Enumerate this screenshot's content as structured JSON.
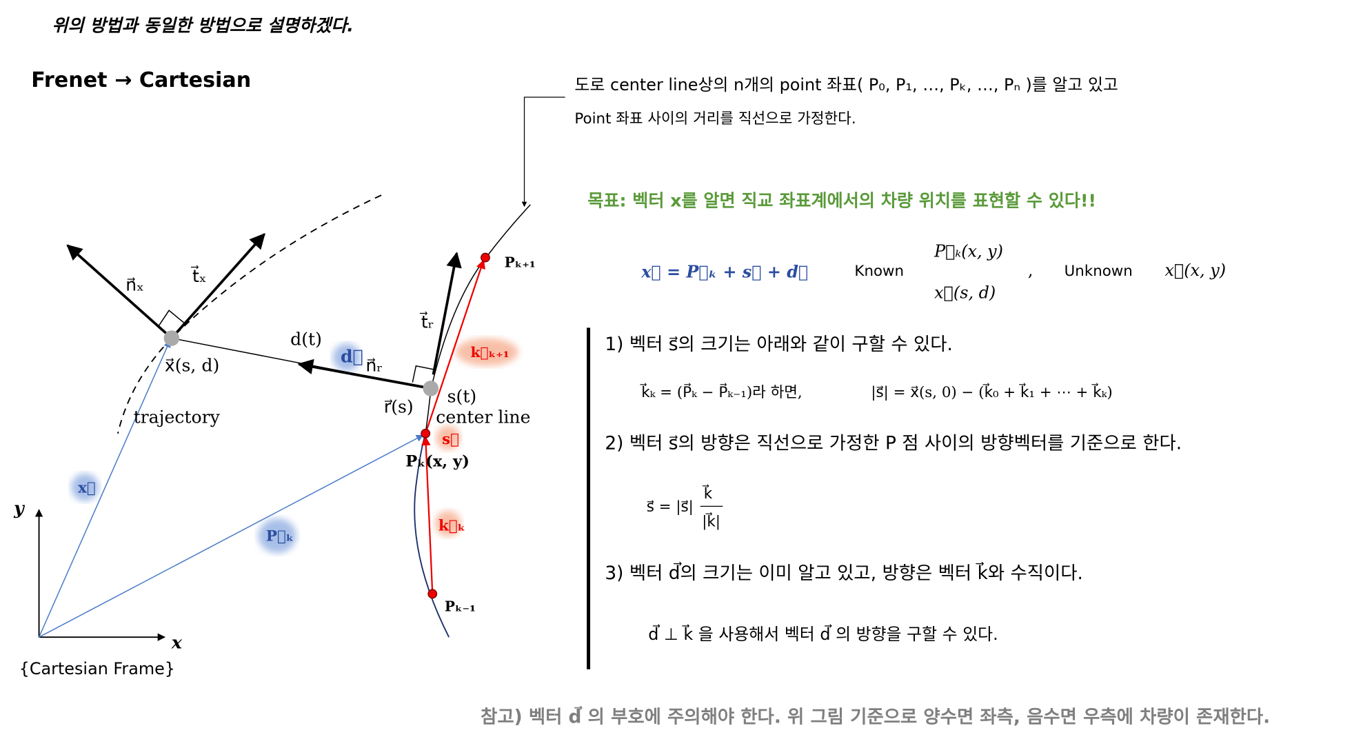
{
  "header": {
    "note": "위의 방법과 동일한 방법으로 설명하겠다.",
    "title": "Frenet → Cartesian"
  },
  "diagram": {
    "n_x": "n⃗ₓ",
    "t_x": "t⃗ₓ",
    "x_sd": "x⃗(s, d)",
    "trajectory": "trajectory",
    "d_t": "d(t)",
    "d_vec": "d⃗",
    "n_r": "n⃗ᵣ",
    "t_r": "t⃗ᵣ",
    "k_next": "k⃗ₖ₊₁",
    "p_next": "Pₖ₊₁",
    "r_s": "r⃗(s)",
    "s_t": "s(t)",
    "center_line": "center line",
    "s_vec": "s⃗",
    "p_k": "Pₖ(x, y)",
    "k_k": "k⃗ₖ",
    "p_prev": "Pₖ₋₁",
    "x_vec": "x⃗",
    "p_vec": "P⃗ₖ",
    "y_axis": "y",
    "x_axis": "x",
    "frame": "{Cartesian Frame}"
  },
  "notes": {
    "line1": "도로 center line상의 n개의 point 좌표( P₀, P₁, …, Pₖ, …, Pₙ )를 알고 있고",
    "line2": "Point 좌표 사이의 거리를 직선으로 가정한다.",
    "goal": "목표: 벡터 x를 알면 직교 좌표계에서의 차량 위치를 표현할 수 있다!!"
  },
  "equation": {
    "main": "x⃗ = P⃗ₖ + s⃗ + d⃗",
    "known": "Known",
    "known_1": "P⃗ₖ(x, y)",
    "known_2": "x⃗(s, d)",
    "comma": ",",
    "unknown": "Unknown",
    "unknown_1": "x⃗(x, y)"
  },
  "steps": [
    {
      "text": "1) 벡터 s⃗의 크기는 아래와 같이 구할 수 있다.",
      "formula": "k⃗ₖ = (P⃗ₖ − P⃗ₖ₋₁)라 하면,",
      "formula_2": "|s⃗| = x⃗(s, 0) − (k⃗₀ + k⃗₁ + ⋯ + k⃗ₖ)"
    },
    {
      "text": "2) 벡터 s⃗의 방향은 직선으로 가정한 P 점 사이의 방향벡터를 기준으로 한다.",
      "formula": "s⃗ = |s⃗|",
      "numerator": "k⃗",
      "denominator": "|k⃗|"
    },
    {
      "text": "3) 벡터 d⃗의 크기는 이미 알고 있고, 방향은 벡터 k⃗와 수직이다.",
      "formula": "d⃗ ⊥ k⃗ 을 사용해서 벡터 d⃗ 의 방향을 구할 수 있다."
    }
  ],
  "footer": "참고) 벡터 d⃗ 의 부호에 주의해야 한다. 위 그림 기준으로 양수면 좌측, 음수면 우측에 차량이 존재한다."
}
